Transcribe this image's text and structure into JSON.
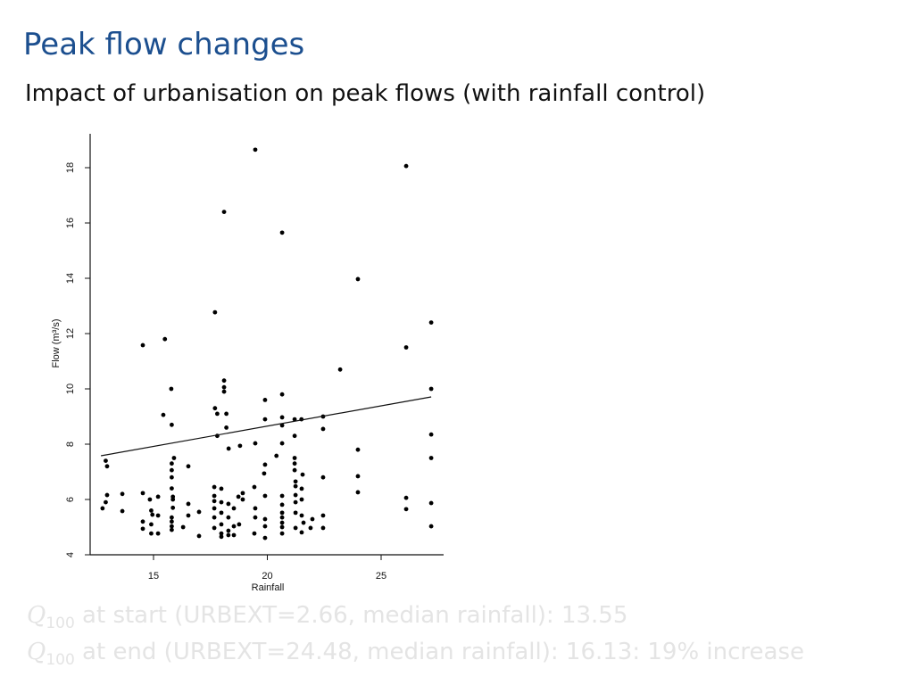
{
  "slide": {
    "title": "Peak flow changes",
    "subtitle": "Impact of urbanisation on peak flows (with rainfall control)",
    "notes": [
      {
        "symbol": "Q",
        "subscript": "100",
        "text": " at start (URBEXT=2.66, median rainfall): 13.55"
      },
      {
        "symbol": "Q",
        "subscript": "100",
        "text": " at end (URBEXT=24.48, median rainfall): 16.13: 19% increase"
      }
    ],
    "title_color": "#1c4f8f",
    "notes_color": "#e4e4e4"
  },
  "chart_data": {
    "type": "scatter",
    "title": "",
    "xlabel": "Rainfall",
    "ylabel": "Flow (m³/s)",
    "xlim": [
      12.2,
      27.7
    ],
    "ylim": [
      4,
      19.2
    ],
    "xticks": [
      15,
      20,
      25
    ],
    "yticks": [
      4,
      6,
      8,
      10,
      12,
      14,
      16,
      18
    ],
    "grid": false,
    "marker_color": "#000000",
    "fit_line": {
      "x": [
        12.69,
        27.2
      ],
      "y": [
        7.58,
        9.71
      ]
    },
    "points": [
      [
        19.47,
        18.65
      ],
      [
        26.1,
        18.06
      ],
      [
        18.1,
        16.4
      ],
      [
        20.65,
        15.65
      ],
      [
        23.98,
        13.97
      ],
      [
        17.7,
        12.77
      ],
      [
        27.2,
        12.4
      ],
      [
        14.53,
        11.58
      ],
      [
        15.5,
        11.8
      ],
      [
        26.1,
        11.5
      ],
      [
        23.2,
        10.7
      ],
      [
        27.2,
        10.0
      ],
      [
        15.78,
        10.0
      ],
      [
        18.1,
        10.3
      ],
      [
        18.1,
        10.06
      ],
      [
        18.1,
        9.9
      ],
      [
        19.9,
        9.6
      ],
      [
        20.65,
        9.8
      ],
      [
        17.7,
        9.3
      ],
      [
        17.8,
        9.1
      ],
      [
        18.2,
        9.1
      ],
      [
        15.43,
        9.06
      ],
      [
        15.8,
        8.7
      ],
      [
        19.9,
        8.9
      ],
      [
        20.65,
        8.97
      ],
      [
        20.65,
        8.68
      ],
      [
        21.2,
        8.9
      ],
      [
        21.5,
        8.9
      ],
      [
        22.45,
        9.0
      ],
      [
        22.45,
        8.55
      ],
      [
        17.8,
        8.3
      ],
      [
        18.2,
        8.6
      ],
      [
        21.2,
        8.3
      ],
      [
        20.65,
        8.03
      ],
      [
        19.47,
        8.03
      ],
      [
        18.8,
        7.94
      ],
      [
        18.3,
        7.84
      ],
      [
        23.98,
        7.8
      ],
      [
        27.2,
        8.35
      ],
      [
        27.2,
        7.5
      ],
      [
        12.9,
        7.4
      ],
      [
        12.96,
        7.2
      ],
      [
        15.9,
        7.5
      ],
      [
        15.8,
        7.3
      ],
      [
        15.8,
        7.06
      ],
      [
        20.4,
        7.58
      ],
      [
        19.9,
        7.26
      ],
      [
        19.86,
        6.94
      ],
      [
        21.2,
        7.5
      ],
      [
        21.2,
        7.3
      ],
      [
        21.2,
        7.06
      ],
      [
        21.55,
        6.9
      ],
      [
        22.45,
        6.8
      ],
      [
        23.98,
        6.84
      ],
      [
        16.53,
        7.2
      ],
      [
        15.8,
        6.8
      ],
      [
        15.8,
        6.4
      ],
      [
        12.96,
        6.16
      ],
      [
        12.9,
        5.9
      ],
      [
        12.76,
        5.68
      ],
      [
        13.63,
        6.2
      ],
      [
        13.63,
        5.58
      ],
      [
        14.53,
        6.23
      ],
      [
        14.84,
        6.0
      ],
      [
        14.9,
        5.6
      ],
      [
        14.95,
        5.45
      ],
      [
        15.2,
        6.1
      ],
      [
        15.2,
        5.42
      ],
      [
        15.85,
        6.1
      ],
      [
        15.85,
        6.0
      ],
      [
        15.85,
        5.7
      ],
      [
        14.53,
        5.2
      ],
      [
        14.53,
        4.94
      ],
      [
        14.9,
        5.1
      ],
      [
        14.9,
        4.77
      ],
      [
        15.2,
        4.77
      ],
      [
        15.8,
        5.35
      ],
      [
        15.8,
        5.2
      ],
      [
        15.8,
        5.03
      ],
      [
        15.8,
        4.9
      ],
      [
        16.3,
        5.0
      ],
      [
        16.53,
        5.84
      ],
      [
        16.53,
        5.42
      ],
      [
        17.0,
        5.55
      ],
      [
        17.0,
        4.68
      ],
      [
        17.67,
        6.45
      ],
      [
        17.67,
        6.13
      ],
      [
        17.67,
        5.94
      ],
      [
        17.67,
        5.68
      ],
      [
        17.67,
        5.35
      ],
      [
        17.67,
        4.97
      ],
      [
        17.98,
        6.39
      ],
      [
        17.98,
        5.9
      ],
      [
        17.98,
        5.52
      ],
      [
        17.98,
        5.1
      ],
      [
        17.98,
        4.77
      ],
      [
        17.98,
        4.65
      ],
      [
        18.29,
        5.84
      ],
      [
        18.29,
        5.35
      ],
      [
        18.29,
        4.87
      ],
      [
        18.29,
        4.71
      ],
      [
        18.53,
        5.68
      ],
      [
        18.53,
        5.03
      ],
      [
        18.53,
        4.71
      ],
      [
        18.73,
        6.1
      ],
      [
        18.76,
        5.1
      ],
      [
        18.92,
        6.23
      ],
      [
        18.92,
        6.0
      ],
      [
        19.43,
        6.45
      ],
      [
        19.47,
        5.68
      ],
      [
        19.47,
        5.35
      ],
      [
        19.43,
        4.77
      ],
      [
        19.9,
        6.13
      ],
      [
        19.9,
        5.29
      ],
      [
        19.9,
        5.03
      ],
      [
        19.9,
        4.61
      ],
      [
        20.65,
        6.13
      ],
      [
        20.65,
        5.81
      ],
      [
        20.65,
        5.52
      ],
      [
        20.65,
        5.35
      ],
      [
        20.65,
        5.16
      ],
      [
        20.65,
        5.0
      ],
      [
        20.65,
        4.77
      ],
      [
        21.24,
        6.65
      ],
      [
        21.24,
        6.48
      ],
      [
        21.24,
        6.16
      ],
      [
        21.24,
        5.9
      ],
      [
        21.24,
        5.52
      ],
      [
        21.24,
        4.97
      ],
      [
        21.51,
        6.39
      ],
      [
        21.51,
        6.0
      ],
      [
        21.51,
        5.42
      ],
      [
        21.51,
        4.81
      ],
      [
        21.59,
        5.16
      ],
      [
        21.98,
        5.29
      ],
      [
        21.9,
        4.97
      ],
      [
        22.45,
        5.42
      ],
      [
        22.45,
        4.97
      ],
      [
        23.98,
        6.26
      ],
      [
        26.1,
        6.06
      ],
      [
        26.1,
        5.65
      ],
      [
        27.2,
        5.87
      ],
      [
        27.2,
        5.03
      ]
    ]
  }
}
